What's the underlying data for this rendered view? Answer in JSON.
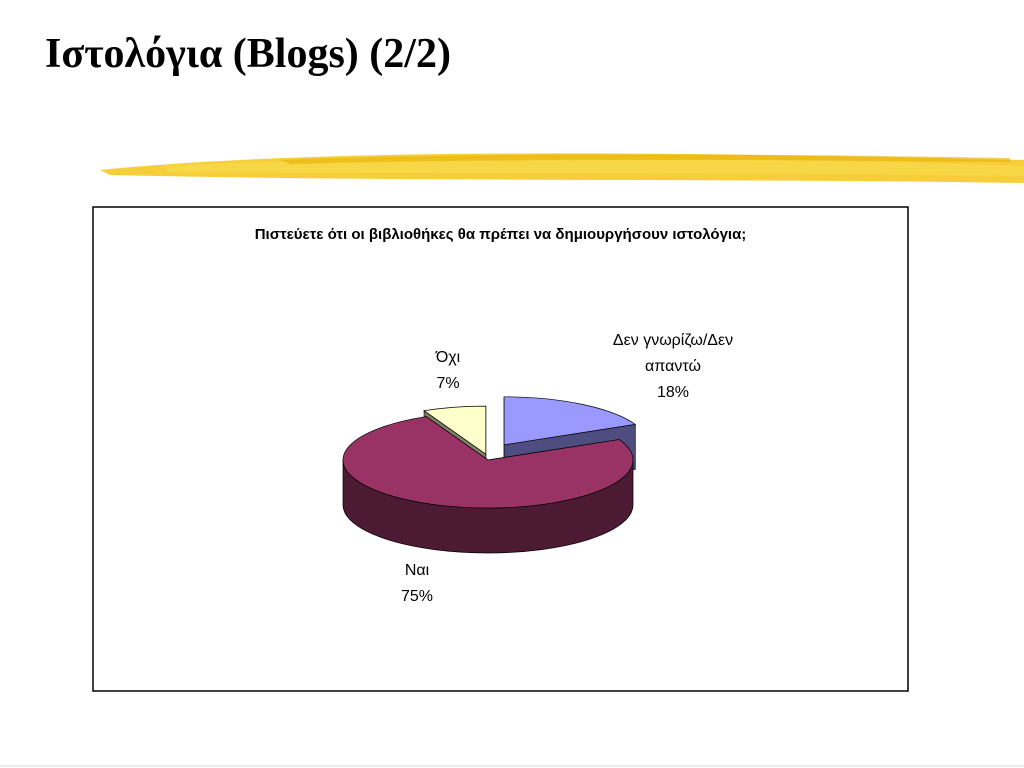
{
  "slide_title": "Ιστολόγια (Blogs) (2/2)",
  "chart_data": {
    "type": "pie",
    "title": "Πιστεύετε ότι οι βιβλιοθήκες θα πρέπει να δημιουργήσουν ιστολόγια;",
    "categories": [
      "Δεν γνωρίζω/Δεν απαντώ",
      "Ναι",
      "Όχι"
    ],
    "values": [
      18,
      75,
      7
    ],
    "value_labels": [
      "18%",
      "75%",
      "7%"
    ],
    "colors": [
      "#9999ff",
      "#993366",
      "#ffffcc"
    ]
  }
}
